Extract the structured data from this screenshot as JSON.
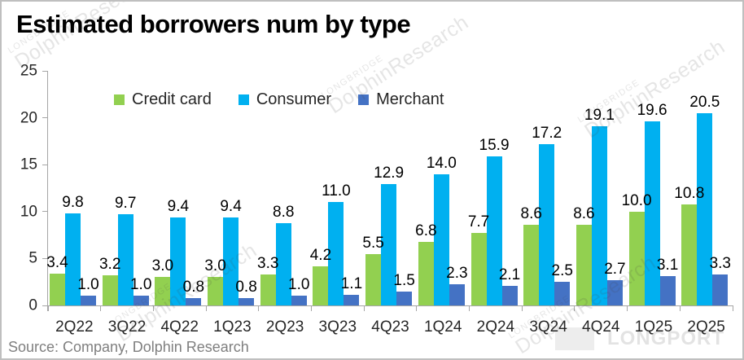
{
  "header": {
    "title": "Estimated borrowers num by type"
  },
  "footer": {
    "source": "Source: Company, Dolphin Research"
  },
  "watermark": {
    "brand": "LONGBRIDGE",
    "logo_glyph": "..ılılı.",
    "name": "DolphinResearch",
    "corner": "LONGPORT"
  },
  "chart_data": {
    "type": "bar",
    "title": "Estimated borrowers num by type",
    "categories": [
      "2Q22",
      "3Q22",
      "4Q22",
      "1Q23",
      "2Q23",
      "3Q23",
      "4Q23",
      "1Q24",
      "2Q24",
      "3Q24",
      "4Q24",
      "1Q25",
      "2Q25"
    ],
    "series": [
      {
        "name": "Credit card",
        "color": "#92D050",
        "values": [
          3.4,
          3.2,
          3.0,
          3.0,
          3.3,
          4.2,
          5.5,
          6.8,
          7.7,
          8.6,
          8.6,
          10.0,
          10.8
        ]
      },
      {
        "name": "Consumer",
        "color": "#00B0F0",
        "values": [
          9.8,
          9.7,
          9.4,
          9.4,
          8.8,
          11.0,
          12.9,
          14.0,
          15.9,
          17.2,
          19.1,
          19.6,
          20.5
        ]
      },
      {
        "name": "Merchant",
        "color": "#4472C4",
        "values": [
          1.0,
          1.0,
          0.8,
          0.8,
          1.0,
          1.1,
          1.5,
          2.3,
          2.1,
          2.5,
          2.7,
          3.1,
          3.3
        ]
      }
    ],
    "xlabel": "",
    "ylabel": "",
    "ylim": [
      0,
      25
    ],
    "yticks": [
      0,
      5,
      10,
      15,
      20,
      25
    ],
    "grid": false,
    "legend_position": "top-inside",
    "value_labels": true,
    "axis_color": "#A6A6A6",
    "label_color": "#000000"
  }
}
